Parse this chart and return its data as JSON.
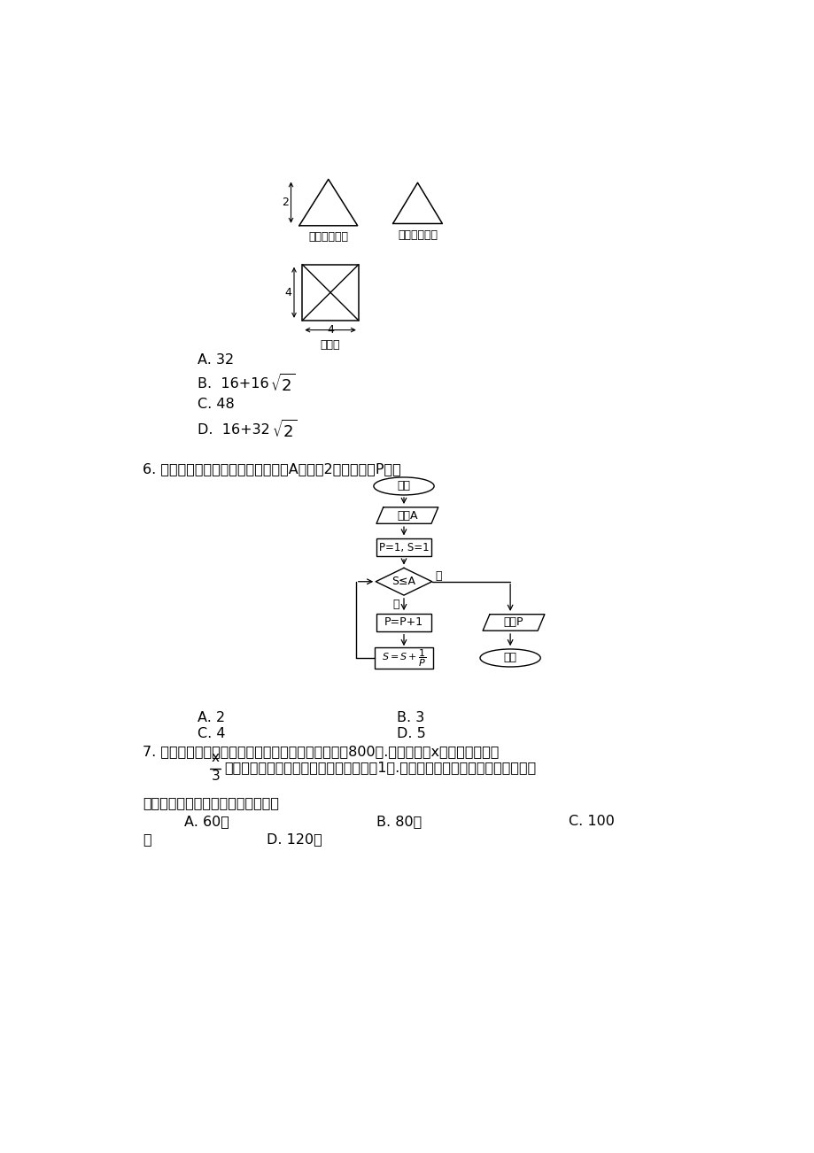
{
  "bg_color": "#ffffff",
  "fig_width": 9.2,
  "fig_height": 13.02,
  "tri1_label": "正（主）视图",
  "tri2_label": "侧（左）视图",
  "rect_label": "俧视图",
  "ans5_a": "A. 32",
  "ans5_c": "C. 48",
  "q6_text": "6. 执行如图所示的程序框图，若输入A的値为2，则输入的P値为",
  "box_kaishi": "开始",
  "box_input": "输入A",
  "box_init": "P=1, S=1",
  "box_cond": "S≤A",
  "box_pp1": "P=P+1",
  "box_output": "输出P",
  "box_end": "结束",
  "label_yes": "是",
  "label_no": "否",
  "ans6_a": "A. 2",
  "ans6_b": "B. 3",
  "ans6_c": "C. 4",
  "ans6_d": "D. 5",
  "q7_line1": "7. 某车间分批生产某种产品，每批的生产准备费用为800元.若每批生产x件，则平均仓储",
  "q7_line2": "时间为天，且每件产品每天的仓储费用为1元.为使平均没见产品的生产准备费用与",
  "q7_line3": "仓储费用之和最小，每批应生产产品",
  "ans7_a": "A. 60件",
  "ans7_b": "B. 80件",
  "ans7_c": "C. 100",
  "ans7_c2": "件",
  "ans7_d": "D. 120件"
}
